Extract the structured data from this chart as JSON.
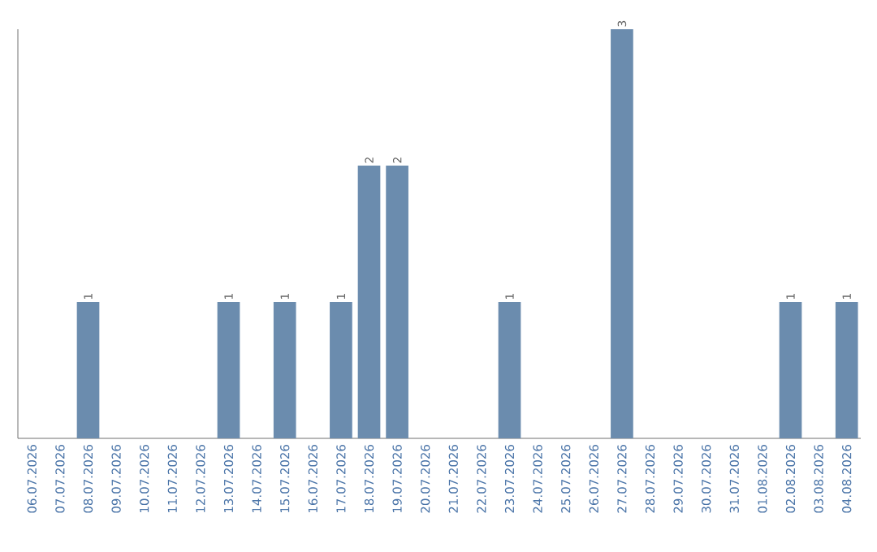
{
  "chart_data": {
    "type": "bar",
    "categories": [
      "06.07.2026",
      "07.07.2026",
      "08.07.2026",
      "09.07.2026",
      "10.07.2026",
      "11.07.2026",
      "12.07.2026",
      "13.07.2026",
      "14.07.2026",
      "15.07.2026",
      "16.07.2026",
      "17.07.2026",
      "18.07.2026",
      "19.07.2026",
      "20.07.2026",
      "21.07.2026",
      "22.07.2026",
      "23.07.2026",
      "24.07.2026",
      "25.07.2026",
      "26.07.2026",
      "27.07.2026",
      "28.07.2026",
      "29.07.2026",
      "30.07.2026",
      "31.07.2026",
      "01.08.2026",
      "02.08.2026",
      "03.08.2026",
      "04.08.2026"
    ],
    "values": [
      0,
      0,
      1,
      0,
      0,
      0,
      0,
      1,
      0,
      1,
      0,
      1,
      2,
      2,
      0,
      0,
      0,
      1,
      0,
      0,
      0,
      3,
      0,
      0,
      0,
      0,
      0,
      1,
      0,
      1
    ],
    "value_labels": [
      null,
      null,
      "1",
      null,
      null,
      null,
      null,
      "1",
      null,
      "1",
      null,
      "1",
      "2",
      "2",
      null,
      null,
      null,
      "1",
      null,
      null,
      null,
      "3",
      null,
      null,
      null,
      null,
      null,
      "1",
      null,
      "1"
    ],
    "color": "#6b8cae",
    "tick_labels": "x"
  }
}
